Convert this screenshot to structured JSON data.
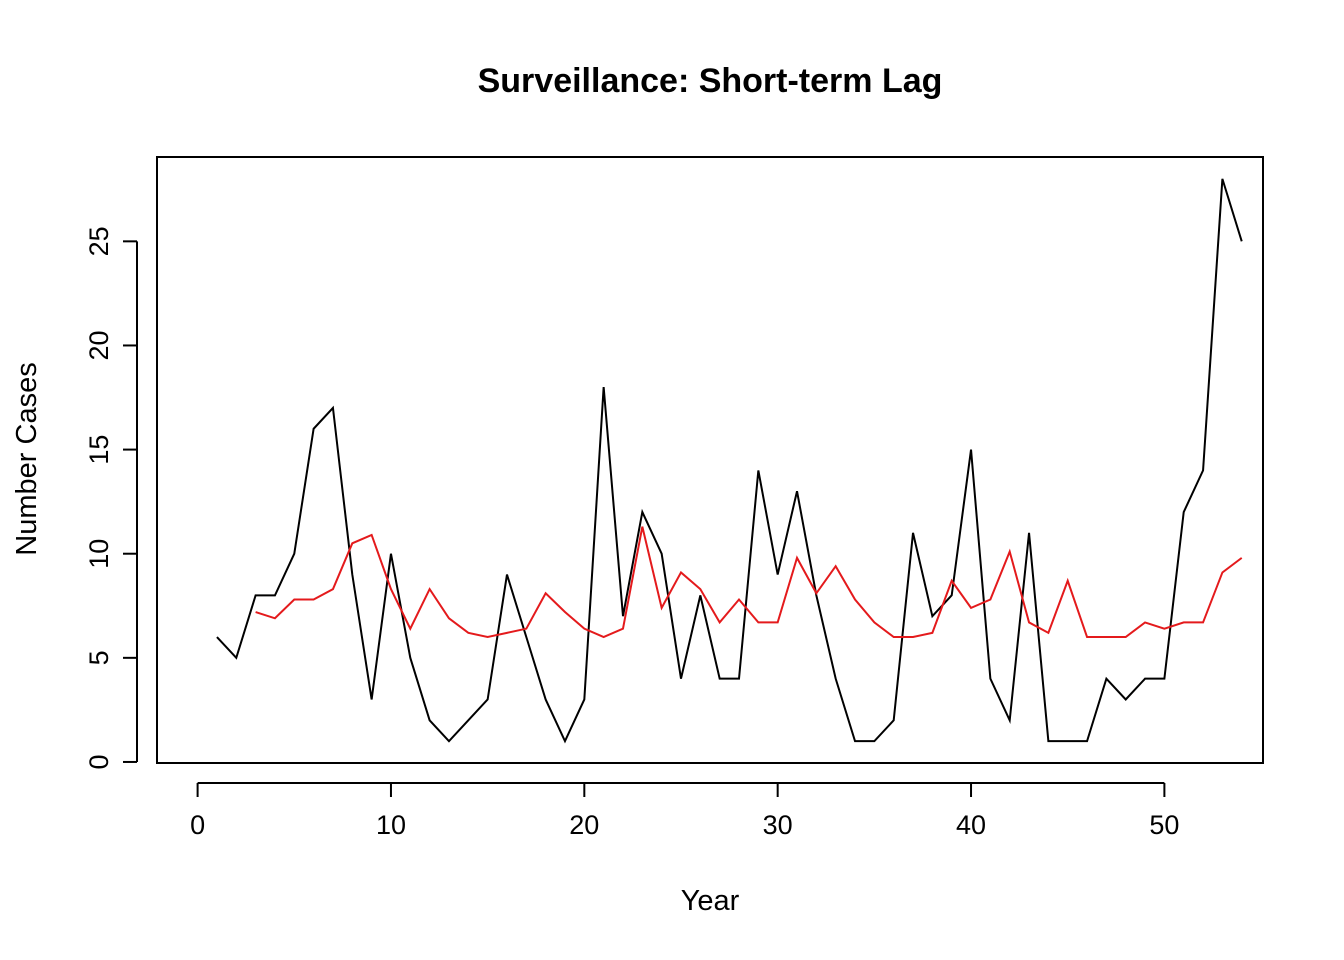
{
  "chart_data": {
    "type": "line",
    "title": "Surveillance: Short-term Lag",
    "xlabel": "Year",
    "ylabel": "Number Cases",
    "xlim": [
      -2.1,
      55.1
    ],
    "ylim": [
      -0.05,
      29.05
    ],
    "x_ticks": [
      0,
      10,
      20,
      30,
      40,
      50
    ],
    "y_ticks": [
      0,
      5,
      10,
      15,
      20,
      25
    ],
    "grid": false,
    "legend": "none",
    "series": [
      {
        "color": "#000000",
        "x": [
          1,
          2,
          3,
          4,
          5,
          6,
          7,
          8,
          9,
          10,
          11,
          12,
          13,
          14,
          15,
          16,
          17,
          18,
          19,
          20,
          21,
          22,
          23,
          24,
          25,
          26,
          27,
          28,
          29,
          30,
          31,
          32,
          33,
          34,
          35,
          36,
          37,
          38,
          39,
          40,
          41,
          42,
          43,
          44,
          45,
          46,
          47,
          48,
          49,
          50,
          51,
          52,
          53,
          54
        ],
        "values": [
          6,
          5,
          8,
          8,
          10,
          16,
          17,
          9,
          3,
          10,
          5,
          2,
          1,
          2,
          3,
          9,
          6,
          3,
          1,
          3,
          18,
          7,
          12,
          10,
          4,
          8,
          4,
          4,
          14,
          9,
          13,
          8,
          4,
          1,
          1,
          2,
          11,
          7,
          8,
          15,
          4,
          2,
          11,
          1,
          1,
          1,
          4,
          3,
          4,
          4,
          12,
          14,
          28,
          25
        ]
      },
      {
        "color": "#e41a1c",
        "x": [
          3,
          4,
          5,
          6,
          7,
          8,
          9,
          10,
          11,
          12,
          13,
          14,
          15,
          16,
          17,
          18,
          19,
          20,
          21,
          22,
          23,
          24,
          25,
          26,
          27,
          28,
          29,
          30,
          31,
          32,
          33,
          34,
          35,
          36,
          37,
          38,
          39,
          40,
          41,
          42,
          43,
          44,
          45,
          46,
          47,
          48,
          49,
          50,
          51,
          52,
          53,
          54
        ],
        "values": [
          7.2,
          6.9,
          7.8,
          7.8,
          8.3,
          10.5,
          10.9,
          8.3,
          6.4,
          8.3,
          6.9,
          6.2,
          6.0,
          6.2,
          6.4,
          8.1,
          7.2,
          6.4,
          6.0,
          6.4,
          11.3,
          7.4,
          9.1,
          8.3,
          6.7,
          7.8,
          6.7,
          6.7,
          9.8,
          8.1,
          9.4,
          7.8,
          6.7,
          6.0,
          6.0,
          6.2,
          8.7,
          7.4,
          7.8,
          10.1,
          6.7,
          6.2,
          8.7,
          6.0,
          6.0,
          6.0,
          6.7,
          6.4,
          6.7,
          6.7,
          9.1,
          9.8
        ]
      }
    ]
  }
}
